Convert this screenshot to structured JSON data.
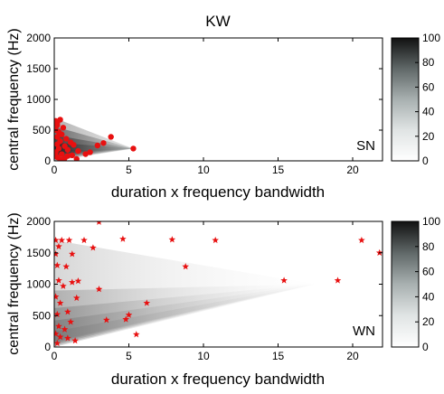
{
  "chart_data": [
    {
      "type": "scatter",
      "title": "KW",
      "panel_label": "SN",
      "xlabel": "duration x frequency bandwidth",
      "ylabel": "central frequency (Hz)",
      "xlim": [
        0,
        22
      ],
      "ylim": [
        0,
        2000
      ],
      "xticks": [
        0,
        5,
        10,
        15,
        20
      ],
      "yticks": [
        0,
        500,
        1000,
        1500,
        2000
      ],
      "grid": false,
      "marker": "circle",
      "marker_color": "#e81010",
      "density_apex": {
        "x": 5.3,
        "y": 200
      },
      "colorbar": {
        "min": 0,
        "max": 100,
        "ticks": [
          0,
          20,
          40,
          60,
          80,
          100
        ],
        "colormap": "white-to-black"
      },
      "points": [
        {
          "x": 0.1,
          "y": 650
        },
        {
          "x": 0.2,
          "y": 620
        },
        {
          "x": 0.4,
          "y": 670
        },
        {
          "x": 0.2,
          "y": 580
        },
        {
          "x": 0.6,
          "y": 540
        },
        {
          "x": 0.1,
          "y": 500
        },
        {
          "x": 0.3,
          "y": 470
        },
        {
          "x": 0.5,
          "y": 430
        },
        {
          "x": 0.2,
          "y": 390
        },
        {
          "x": 0.8,
          "y": 360
        },
        {
          "x": 0.4,
          "y": 320
        },
        {
          "x": 1.1,
          "y": 300
        },
        {
          "x": 0.2,
          "y": 270
        },
        {
          "x": 0.7,
          "y": 240
        },
        {
          "x": 1.3,
          "y": 260
        },
        {
          "x": 0.3,
          "y": 200
        },
        {
          "x": 0.9,
          "y": 180
        },
        {
          "x": 1.6,
          "y": 160
        },
        {
          "x": 0.1,
          "y": 140
        },
        {
          "x": 0.5,
          "y": 110
        },
        {
          "x": 1.2,
          "y": 90
        },
        {
          "x": 2.4,
          "y": 140
        },
        {
          "x": 2.1,
          "y": 110
        },
        {
          "x": 0.2,
          "y": 60
        },
        {
          "x": 0.7,
          "y": 40
        },
        {
          "x": 1.5,
          "y": 30
        },
        {
          "x": 3.8,
          "y": 390
        },
        {
          "x": 3.3,
          "y": 290
        },
        {
          "x": 5.3,
          "y": 200
        },
        {
          "x": 2.9,
          "y": 250
        },
        {
          "x": 0.4,
          "y": 20
        },
        {
          "x": 0.9,
          "y": 80
        }
      ]
    },
    {
      "type": "scatter",
      "panel_label": "WN",
      "xlabel": "duration x frequency bandwidth",
      "ylabel": "central frequency (Hz)",
      "xlim": [
        0,
        22
      ],
      "ylim": [
        0,
        2000
      ],
      "xticks": [
        0,
        5,
        10,
        15,
        20
      ],
      "yticks": [
        0,
        500,
        1000,
        1500,
        2000
      ],
      "grid": false,
      "marker": "star",
      "marker_color": "#e81010",
      "density_apex": {
        "x": 17.5,
        "y": 1000
      },
      "colorbar": {
        "min": 0,
        "max": 100,
        "ticks": [
          0,
          20,
          40,
          60,
          80,
          100
        ],
        "colormap": "white-to-black"
      },
      "points": [
        {
          "x": 3.0,
          "y": 1990
        },
        {
          "x": 0.1,
          "y": 1700
        },
        {
          "x": 0.5,
          "y": 1700
        },
        {
          "x": 1.0,
          "y": 1700
        },
        {
          "x": 0.3,
          "y": 1600
        },
        {
          "x": 2.0,
          "y": 1700
        },
        {
          "x": 2.6,
          "y": 1580
        },
        {
          "x": 4.6,
          "y": 1720
        },
        {
          "x": 7.9,
          "y": 1710
        },
        {
          "x": 10.8,
          "y": 1700
        },
        {
          "x": 20.6,
          "y": 1700
        },
        {
          "x": 21.8,
          "y": 1500
        },
        {
          "x": 0.1,
          "y": 1480
        },
        {
          "x": 1.2,
          "y": 1480
        },
        {
          "x": 0.2,
          "y": 1300
        },
        {
          "x": 0.8,
          "y": 1280
        },
        {
          "x": 8.8,
          "y": 1280
        },
        {
          "x": 15.4,
          "y": 1060
        },
        {
          "x": 19.0,
          "y": 1060
        },
        {
          "x": 0.3,
          "y": 1060
        },
        {
          "x": 0.6,
          "y": 970
        },
        {
          "x": 1.6,
          "y": 1050
        },
        {
          "x": 1.2,
          "y": 1030
        },
        {
          "x": 0.1,
          "y": 800
        },
        {
          "x": 3.0,
          "y": 920
        },
        {
          "x": 1.5,
          "y": 780
        },
        {
          "x": 0.4,
          "y": 700
        },
        {
          "x": 6.2,
          "y": 700
        },
        {
          "x": 0.9,
          "y": 560
        },
        {
          "x": 0.2,
          "y": 520
        },
        {
          "x": 5.0,
          "y": 510
        },
        {
          "x": 4.8,
          "y": 440
        },
        {
          "x": 3.5,
          "y": 430
        },
        {
          "x": 1.1,
          "y": 400
        },
        {
          "x": 0.3,
          "y": 330
        },
        {
          "x": 0.7,
          "y": 280
        },
        {
          "x": 0.1,
          "y": 210
        },
        {
          "x": 5.5,
          "y": 200
        },
        {
          "x": 0.4,
          "y": 160
        },
        {
          "x": 0.9,
          "y": 140
        },
        {
          "x": 1.4,
          "y": 100
        },
        {
          "x": 0.2,
          "y": 60
        }
      ]
    }
  ]
}
